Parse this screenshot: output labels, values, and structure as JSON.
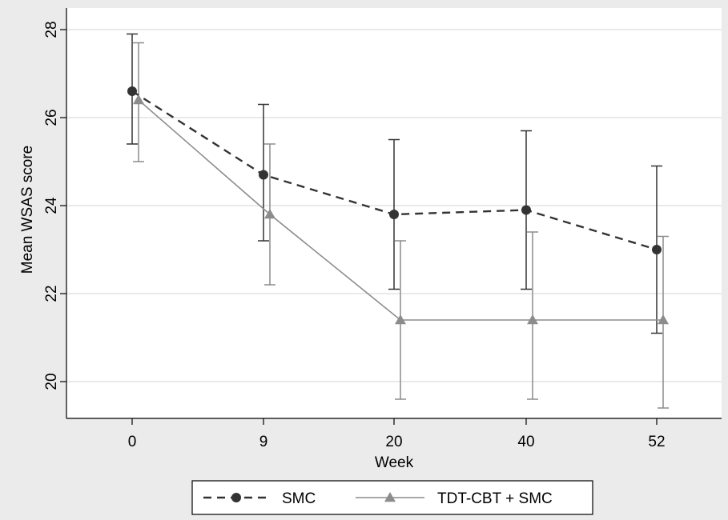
{
  "chart_data": {
    "type": "line",
    "title": "",
    "xlabel": "Week",
    "ylabel": "Mean WSAS score",
    "x": [
      0,
      9,
      20,
      40,
      52
    ],
    "x_tick_labels": [
      "0",
      "9",
      "20",
      "40",
      "52"
    ],
    "y_ticks": [
      20,
      22,
      24,
      26,
      28
    ],
    "y_tick_labels": [
      "20",
      "22",
      "24",
      "26",
      "28"
    ],
    "ylim": [
      19.1,
      28.3
    ],
    "grid": true,
    "legend_position": "bottom",
    "series": [
      {
        "name": "SMC",
        "marker": "circle",
        "line_style": "dashed",
        "color": "#333333",
        "values": [
          26.6,
          24.7,
          23.8,
          23.9,
          23.0
        ],
        "ci_low": [
          25.4,
          23.2,
          22.1,
          22.1,
          21.1
        ],
        "ci_high": [
          27.9,
          26.3,
          25.5,
          25.7,
          24.9
        ]
      },
      {
        "name": "TDT-CBT + SMC",
        "marker": "triangle",
        "line_style": "solid",
        "color": "#8c8c8c",
        "values": [
          26.4,
          23.8,
          21.4,
          21.4,
          21.4
        ],
        "ci_low": [
          25.0,
          22.2,
          19.6,
          19.6,
          19.4
        ],
        "ci_high": [
          27.7,
          25.4,
          23.2,
          23.4,
          23.3
        ]
      }
    ]
  }
}
